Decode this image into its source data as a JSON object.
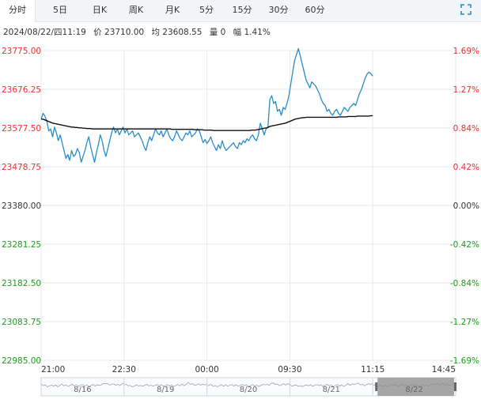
{
  "tabs": [
    {
      "label": "分时",
      "active": true
    },
    {
      "label": "5日"
    },
    {
      "label": "日K"
    },
    {
      "label": "周K"
    },
    {
      "label": "月K"
    },
    {
      "label": "5分"
    },
    {
      "label": "15分"
    },
    {
      "label": "30分"
    },
    {
      "label": "60分"
    }
  ],
  "info": {
    "datetime": "2024/08/22/四11:19",
    "price": "价 23710.00",
    "avg": "均 23608.55",
    "volume": "量 0",
    "change": "幅 1.41%"
  },
  "colors": {
    "up": "#e8312f",
    "down": "#1a9d1a",
    "flat": "#333333",
    "price_line": "#2a8bc7",
    "avg_line": "#111111",
    "grid": "#e6e9ed",
    "nav_fill": "#8a8a8a"
  },
  "chart_data": {
    "type": "line",
    "y_left_ticks": [
      "23775.00",
      "23676.25",
      "23577.50",
      "23478.75",
      "23380.00",
      "23281.25",
      "23182.50",
      "23083.75",
      "22985.00"
    ],
    "y_right_ticks": [
      "1.69%",
      "1.27%",
      "0.84%",
      "0.42%",
      "0.00%",
      "-0.42%",
      "-0.84%",
      "-1.27%",
      "-1.69%"
    ],
    "ylim": [
      22985.0,
      23775.0
    ],
    "base_price": 23380.0,
    "x_ticks": [
      "21:00",
      "22:30",
      "00:00",
      "09:30",
      "11:15",
      "14:45"
    ],
    "session_fraction_elapsed": 0.8,
    "series": [
      {
        "name": "",
        "values": [
          23600,
          23615,
          23608,
          23595,
          23570,
          23575,
          23555,
          23580,
          23565,
          23545,
          23560,
          23540,
          23520,
          23500,
          23510,
          23495,
          23520,
          23505,
          23510,
          23525,
          23515,
          23490,
          23505,
          23520,
          23540,
          23555,
          23530,
          23510,
          23490,
          23515,
          23535,
          23560,
          23545,
          23520,
          23505,
          23525,
          23545,
          23565,
          23580,
          23565,
          23575,
          23560,
          23570,
          23580,
          23565,
          23575,
          23560,
          23565,
          23570,
          23555,
          23560,
          23565,
          23555,
          23545,
          23530,
          23520,
          23540,
          23555,
          23545,
          23560,
          23575,
          23565,
          23560,
          23570,
          23555,
          23565,
          23575,
          23560,
          23550,
          23545,
          23555,
          23570,
          23560,
          23550,
          23545,
          23555,
          23565,
          23560,
          23570,
          23555,
          23560,
          23565,
          23575,
          23570,
          23555,
          23540,
          23548,
          23538,
          23545,
          23555,
          23540,
          23530,
          23520,
          23535,
          23525,
          23545,
          23530,
          23520,
          23525,
          23530,
          23535,
          23540,
          23530,
          23525,
          23540,
          23535,
          23545,
          23540,
          23550,
          23545,
          23555,
          23560,
          23550,
          23545,
          23560,
          23590,
          23575,
          23560,
          23575,
          23580,
          23650,
          23660,
          23640,
          23645,
          23620,
          23625,
          23610,
          23630,
          23625,
          23640,
          23660,
          23690,
          23720,
          23750,
          23765,
          23780,
          23760,
          23740,
          23720,
          23700,
          23690,
          23680,
          23695,
          23690,
          23685,
          23675,
          23665,
          23650,
          23640,
          23635,
          23620,
          23625,
          23615,
          23610,
          23620,
          23625,
          23615,
          23610,
          23620,
          23630,
          23625,
          23620,
          23630,
          23635,
          23640,
          23635,
          23650,
          23665,
          23675,
          23690,
          23705,
          23715,
          23720,
          23716,
          23710
        ],
        "color": "#2a8bc7"
      },
      {
        "name": "",
        "values": [
          23600,
          23600,
          23598,
          23596,
          23594,
          23592,
          23590,
          23589,
          23588,
          23587,
          23586,
          23585,
          23584,
          23583,
          23582,
          23581,
          23580,
          23580,
          23579,
          23579,
          23578,
          23578,
          23577,
          23577,
          23576,
          23576,
          23576,
          23575,
          23575,
          23575,
          23575,
          23575,
          23575,
          23575,
          23575,
          23575,
          23575,
          23575,
          23575,
          23575,
          23575,
          23575,
          23575,
          23575,
          23575,
          23575,
          23575,
          23575,
          23575,
          23575,
          23575,
          23575,
          23575,
          23575,
          23575,
          23575,
          23575,
          23575,
          23575,
          23575,
          23575,
          23575,
          23575,
          23575,
          23575,
          23575,
          23575,
          23575,
          23575,
          23574,
          23574,
          23574,
          23574,
          23574,
          23574,
          23574,
          23574,
          23574,
          23574,
          23574,
          23574,
          23573,
          23573,
          23573,
          23573,
          23573,
          23572,
          23572,
          23572,
          23572,
          23572,
          23571,
          23571,
          23571,
          23571,
          23571,
          23571,
          23571,
          23571,
          23571,
          23571,
          23571,
          23571,
          23571,
          23571,
          23571,
          23571,
          23571,
          23571,
          23571,
          23571,
          23572,
          23572,
          23572,
          23573,
          23574,
          23575,
          23576,
          23577,
          23578,
          23580,
          23582,
          23583,
          23584,
          23585,
          23586,
          23587,
          23588,
          23589,
          23590,
          23592,
          23594,
          23596,
          23598,
          23600,
          23601,
          23602,
          23603,
          23604,
          23604,
          23605,
          23605,
          23605,
          23605,
          23605,
          23605,
          23605,
          23605,
          23605,
          23605,
          23605,
          23605,
          23605,
          23605,
          23605,
          23605,
          23605,
          23606,
          23606,
          23606,
          23606,
          23606,
          23607,
          23607,
          23607,
          23607,
          23607,
          23608,
          23608,
          23608,
          23608,
          23608,
          23608,
          23608,
          23609,
          23609
        ],
        "color": "#111111"
      }
    ],
    "navigator": {
      "labels": [
        "8/16",
        "8/19",
        "8/20",
        "8/21",
        "8/22"
      ],
      "selected_index": 4
    }
  }
}
